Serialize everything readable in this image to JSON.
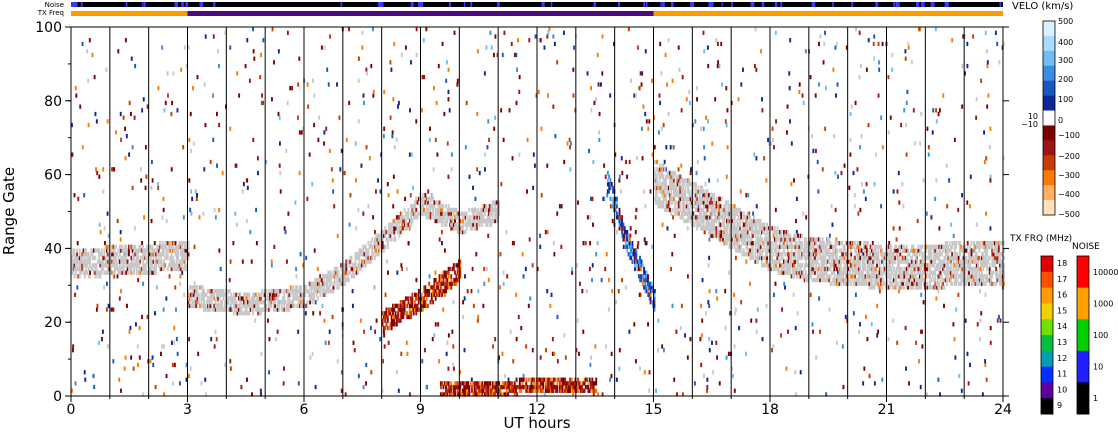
{
  "chart_data": {
    "type": "heatmap",
    "xlabel": "UT hours",
    "ylabel": "Range Gate",
    "xlim": [
      0,
      24
    ],
    "ylim": [
      0,
      100
    ],
    "x_ticks": [
      "0",
      "3",
      "6",
      "9",
      "12",
      "15",
      "18",
      "21",
      "24"
    ],
    "y_ticks": [
      "0",
      "20",
      "40",
      "60",
      "80",
      "100"
    ],
    "top_strips": [
      {
        "label": "Noise",
        "color": "#000000",
        "accent": "#3a3aff"
      },
      {
        "label": "TX Freq",
        "segments": [
          {
            "from": 0,
            "to": 3,
            "color": "#ff9900"
          },
          {
            "from": 3,
            "to": 15,
            "color": "#4b0a82"
          },
          {
            "from": 15,
            "to": 24,
            "color": "#ff9900"
          }
        ]
      }
    ],
    "ground_scatter_color": "#c8c8c8",
    "velocity_scale": {
      "title": "VELO (km/s)",
      "tick_labels": [
        "500",
        "400",
        "300",
        "200",
        "100",
        "10",
        "0",
        "−10",
        "−100",
        "−200",
        "−300",
        "−400",
        "−500"
      ],
      "colors": [
        "#d8f0ff",
        "#a8dcff",
        "#70bcf5",
        "#3a8ee0",
        "#1858c0",
        "#0a2896",
        "#ffffff",
        "#800000",
        "#a01414",
        "#c83c00",
        "#ff7800",
        "#ffb060",
        "#ffe2bc"
      ]
    },
    "txfrq_scale": {
      "title": "TX FRQ (MHz)",
      "labels": [
        "18",
        "17",
        "16",
        "15",
        "14",
        "13",
        "12",
        "11",
        "10",
        "9"
      ],
      "colors": [
        "#e00000",
        "#ff5000",
        "#ff9a00",
        "#f0d000",
        "#70e000",
        "#00c040",
        "#00a0b0",
        "#0030ff",
        "#6000a0",
        "#000000"
      ]
    },
    "noise_scale": {
      "title": "NOISE",
      "labels": [
        "10000",
        "1000",
        "100",
        "10",
        "1"
      ],
      "colors": [
        "#ff0000",
        "#ffa000",
        "#00d000",
        "#2020ff",
        "#000000"
      ]
    },
    "scatter_features": [
      {
        "name": "ground scatter band 0-3 UT",
        "color": "ground",
        "x": [
          0,
          3
        ],
        "y_center": [
          36,
          38
        ],
        "width": 8
      },
      {
        "name": "ground scatter rising 3-9 UT",
        "color": "ground",
        "points": [
          [
            3,
            27
          ],
          [
            4.5,
            25
          ],
          [
            6,
            27
          ],
          [
            7,
            33
          ],
          [
            8,
            42
          ],
          [
            9,
            52
          ],
          [
            10,
            47
          ],
          [
            11,
            50
          ]
        ],
        "width": 6
      },
      {
        "name": "ground scatter 15-24 UT",
        "color": "ground",
        "points": [
          [
            15,
            58
          ],
          [
            16,
            52
          ],
          [
            17,
            46
          ],
          [
            18,
            40
          ],
          [
            19,
            37
          ],
          [
            21,
            35
          ],
          [
            24,
            36
          ]
        ],
        "width": 12
      },
      {
        "name": "negative velocity 8-10 UT",
        "color": "neg",
        "points": [
          [
            8,
            20
          ],
          [
            9,
            26
          ],
          [
            10,
            34
          ]
        ],
        "width": 6
      },
      {
        "name": "negative velocity near ground 9.5-13.5 UT",
        "color": "neg",
        "points": [
          [
            9.5,
            2
          ],
          [
            13.5,
            3
          ]
        ],
        "width": 4
      },
      {
        "name": "positive velocity 13.8-15 UT",
        "color": "pos",
        "points": [
          [
            13.8,
            58
          ],
          [
            14.3,
            42
          ],
          [
            15,
            26
          ]
        ],
        "width": 6
      }
    ]
  }
}
